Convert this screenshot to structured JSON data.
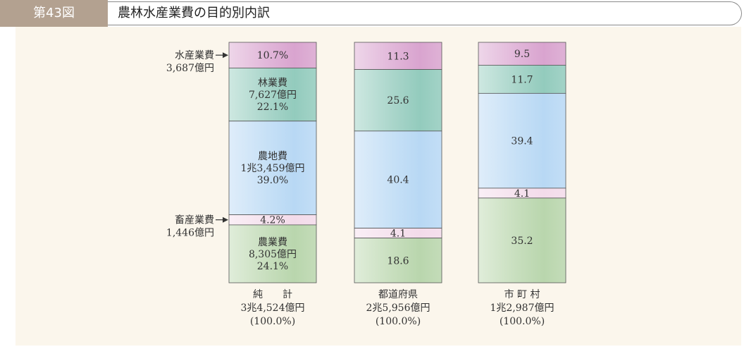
{
  "header": {
    "tag": "第43図",
    "title": "農林水産業費の目的別内訳"
  },
  "colors": {
    "header_tag": "#b3a190",
    "background": "#fbf6ec",
    "水産業費": "#d9a4cf",
    "林業費": "#93cbbd",
    "農地費": "#b8d8f4",
    "畜産業費": "#f3dbea",
    "農業費": "#b9d6ad"
  },
  "chart_data": {
    "type": "bar",
    "stacked": true,
    "percent": true,
    "categories": [
      {
        "name": "純　　計",
        "total": "3兆4,524億円",
        "pct": "(100.0%)"
      },
      {
        "name": "都道府県",
        "total": "2兆5,956億円",
        "pct": "(100.0%)"
      },
      {
        "name": "市 町 村",
        "total": "1兆2,987億円",
        "pct": "(100.0%)"
      }
    ],
    "series": [
      {
        "key": "水産業費",
        "values": [
          10.7,
          11.3,
          9.5
        ],
        "labels": [
          "10.7%",
          "11.3",
          "9.5"
        ]
      },
      {
        "key": "林業費",
        "values": [
          22.1,
          25.6,
          11.7
        ],
        "labels": [
          "林業費\n7,627億円\n22.1%",
          "25.6",
          "11.7"
        ]
      },
      {
        "key": "農地費",
        "values": [
          39.0,
          40.4,
          39.4
        ],
        "labels": [
          "農地費\n1兆3,459億円\n39.0%",
          "40.4",
          "39.4"
        ]
      },
      {
        "key": "畜産業費",
        "values": [
          4.2,
          4.1,
          4.1
        ],
        "labels": [
          "4.2%",
          "4.1",
          "4.1"
        ]
      },
      {
        "key": "農業費",
        "values": [
          24.1,
          18.6,
          35.2
        ],
        "labels": [
          "農業費\n8,305億円\n24.1%",
          "18.6",
          "35.2"
        ]
      }
    ],
    "annotations": [
      {
        "series": "水産業費",
        "lines": [
          "水産業費",
          "3,687億円"
        ]
      },
      {
        "series": "畜産業費",
        "lines": [
          "畜産業費",
          "1,446億円"
        ]
      }
    ],
    "ylim": [
      0,
      100
    ]
  }
}
